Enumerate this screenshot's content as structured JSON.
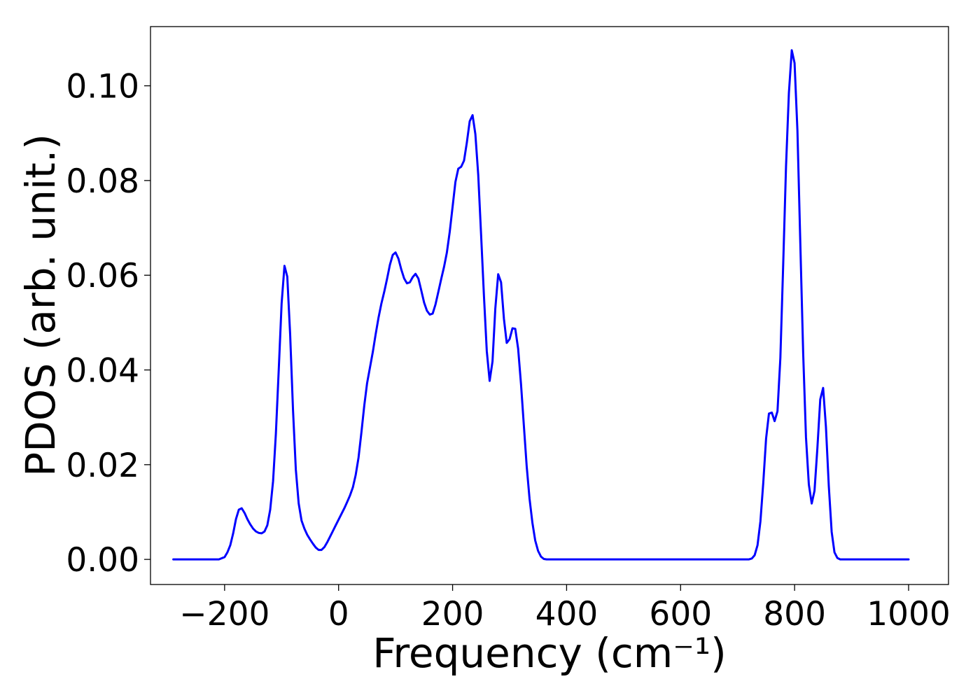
{
  "chart_data": {
    "type": "line",
    "title": "",
    "xlabel": "Frequency (cm⁻¹)",
    "ylabel": "PDOS (arb. unit.)",
    "xlim": [
      -330,
      1070
    ],
    "ylim": [
      -0.0053,
      0.1125
    ],
    "xticks": [
      -200,
      0,
      200,
      400,
      600,
      800,
      1000
    ],
    "xtick_labels": [
      "−200",
      "0",
      "200",
      "400",
      "600",
      "800",
      "1000"
    ],
    "yticks": [
      0.0,
      0.02,
      0.04,
      0.06,
      0.08,
      0.1
    ],
    "ytick_labels": [
      "0.00",
      "0.02",
      "0.04",
      "0.06",
      "0.08",
      "0.10"
    ],
    "grid": false,
    "legend": "none",
    "series": [
      {
        "color": "#0000ff",
        "points": [
          [
            -290,
            0.0
          ],
          [
            -210,
            0.0
          ],
          [
            -200,
            0.0005
          ],
          [
            -195,
            0.0015
          ],
          [
            -190,
            0.003
          ],
          [
            -185,
            0.0055
          ],
          [
            -180,
            0.0085
          ],
          [
            -175,
            0.0105
          ],
          [
            -170,
            0.0108
          ],
          [
            -165,
            0.0098
          ],
          [
            -160,
            0.0085
          ],
          [
            -155,
            0.0074
          ],
          [
            -150,
            0.0065
          ],
          [
            -145,
            0.0059
          ],
          [
            -140,
            0.0056
          ],
          [
            -135,
            0.0055
          ],
          [
            -130,
            0.0059
          ],
          [
            -125,
            0.0072
          ],
          [
            -120,
            0.0105
          ],
          [
            -115,
            0.0165
          ],
          [
            -110,
            0.0265
          ],
          [
            -105,
            0.04
          ],
          [
            -100,
            0.054
          ],
          [
            -95,
            0.062
          ],
          [
            -90,
            0.0597
          ],
          [
            -85,
            0.0475
          ],
          [
            -80,
            0.0315
          ],
          [
            -75,
            0.019
          ],
          [
            -70,
            0.0118
          ],
          [
            -65,
            0.0082
          ],
          [
            -60,
            0.0065
          ],
          [
            -55,
            0.0052
          ],
          [
            -50,
            0.0042
          ],
          [
            -45,
            0.0033
          ],
          [
            -40,
            0.0025
          ],
          [
            -35,
            0.002
          ],
          [
            -30,
            0.002
          ],
          [
            -25,
            0.0026
          ],
          [
            -20,
            0.0036
          ],
          [
            -15,
            0.0048
          ],
          [
            -10,
            0.006
          ],
          [
            -5,
            0.0072
          ],
          [
            0,
            0.0084
          ],
          [
            5,
            0.0096
          ],
          [
            10,
            0.0108
          ],
          [
            15,
            0.0121
          ],
          [
            20,
            0.0135
          ],
          [
            25,
            0.0152
          ],
          [
            30,
            0.0178
          ],
          [
            35,
            0.0215
          ],
          [
            40,
            0.0268
          ],
          [
            45,
            0.0325
          ],
          [
            50,
            0.0372
          ],
          [
            55,
            0.0405
          ],
          [
            60,
            0.0438
          ],
          [
            65,
            0.0475
          ],
          [
            70,
            0.051
          ],
          [
            75,
            0.054
          ],
          [
            80,
            0.0565
          ],
          [
            85,
            0.0592
          ],
          [
            90,
            0.0622
          ],
          [
            95,
            0.0643
          ],
          [
            100,
            0.0648
          ],
          [
            105,
            0.0635
          ],
          [
            110,
            0.0612
          ],
          [
            115,
            0.0593
          ],
          [
            120,
            0.0583
          ],
          [
            125,
            0.0585
          ],
          [
            130,
            0.0596
          ],
          [
            135,
            0.0603
          ],
          [
            140,
            0.0593
          ],
          [
            145,
            0.0568
          ],
          [
            150,
            0.0542
          ],
          [
            155,
            0.0525
          ],
          [
            160,
            0.0517
          ],
          [
            165,
            0.0519
          ],
          [
            170,
            0.0538
          ],
          [
            175,
            0.0565
          ],
          [
            180,
            0.0592
          ],
          [
            185,
            0.0618
          ],
          [
            190,
            0.0648
          ],
          [
            195,
            0.0692
          ],
          [
            200,
            0.0745
          ],
          [
            205,
            0.0797
          ],
          [
            210,
            0.0825
          ],
          [
            215,
            0.0829
          ],
          [
            220,
            0.0842
          ],
          [
            225,
            0.088
          ],
          [
            230,
            0.0925
          ],
          [
            235,
            0.0938
          ],
          [
            240,
            0.0898
          ],
          [
            245,
            0.0812
          ],
          [
            250,
            0.0685
          ],
          [
            255,
            0.0555
          ],
          [
            260,
            0.044
          ],
          [
            265,
            0.0377
          ],
          [
            270,
            0.0418
          ],
          [
            275,
            0.053
          ],
          [
            280,
            0.0602
          ],
          [
            285,
            0.0585
          ],
          [
            290,
            0.0508
          ],
          [
            295,
            0.0457
          ],
          [
            300,
            0.0465
          ],
          [
            305,
            0.0488
          ],
          [
            310,
            0.0487
          ],
          [
            315,
            0.0445
          ],
          [
            320,
            0.037
          ],
          [
            325,
            0.0282
          ],
          [
            330,
            0.0197
          ],
          [
            335,
            0.0128
          ],
          [
            340,
            0.0077
          ],
          [
            345,
            0.004
          ],
          [
            350,
            0.0018
          ],
          [
            355,
            0.0006
          ],
          [
            360,
            0.0001
          ],
          [
            365,
            0.0
          ],
          [
            720,
            0.0
          ],
          [
            725,
            0.0002
          ],
          [
            730,
            0.0009
          ],
          [
            735,
            0.003
          ],
          [
            740,
            0.008
          ],
          [
            745,
            0.0162
          ],
          [
            750,
            0.0255
          ],
          [
            755,
            0.0308
          ],
          [
            760,
            0.031
          ],
          [
            765,
            0.0292
          ],
          [
            770,
            0.0313
          ],
          [
            775,
            0.0425
          ],
          [
            780,
            0.0625
          ],
          [
            785,
            0.083
          ],
          [
            790,
            0.0985
          ],
          [
            795,
            0.1075
          ],
          [
            800,
            0.1048
          ],
          [
            805,
            0.0905
          ],
          [
            810,
            0.0668
          ],
          [
            815,
            0.0435
          ],
          [
            820,
            0.0258
          ],
          [
            825,
            0.0158
          ],
          [
            830,
            0.0118
          ],
          [
            835,
            0.0145
          ],
          [
            840,
            0.0235
          ],
          [
            845,
            0.0338
          ],
          [
            850,
            0.0362
          ],
          [
            855,
            0.028
          ],
          [
            860,
            0.0155
          ],
          [
            865,
            0.0058
          ],
          [
            870,
            0.0015
          ],
          [
            875,
            0.0003
          ],
          [
            880,
            0.0
          ],
          [
            1000,
            0.0
          ]
        ]
      }
    ]
  }
}
